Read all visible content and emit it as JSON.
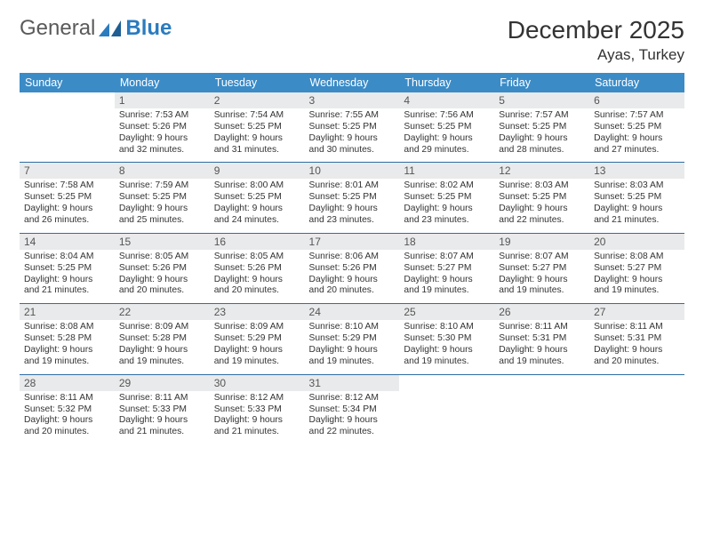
{
  "branding": {
    "word1": "General",
    "word2": "Blue",
    "logo_color": "#2b7bbf",
    "text_color": "#5a5a5a"
  },
  "title": {
    "month": "December 2025",
    "location": "Ayas, Turkey"
  },
  "colors": {
    "header_bg": "#3b8bc7",
    "header_fg": "#ffffff",
    "daynum_bg": "#e9eaeb",
    "row_border": "#2f6ea3"
  },
  "weekdays": [
    "Sunday",
    "Monday",
    "Tuesday",
    "Wednesday",
    "Thursday",
    "Friday",
    "Saturday"
  ],
  "weeks": [
    [
      {
        "n": "",
        "sr": "",
        "ss": "",
        "dl": "",
        "empty": true
      },
      {
        "n": "1",
        "sr": "Sunrise: 7:53 AM",
        "ss": "Sunset: 5:26 PM",
        "dl": "Daylight: 9 hours and 32 minutes."
      },
      {
        "n": "2",
        "sr": "Sunrise: 7:54 AM",
        "ss": "Sunset: 5:25 PM",
        "dl": "Daylight: 9 hours and 31 minutes."
      },
      {
        "n": "3",
        "sr": "Sunrise: 7:55 AM",
        "ss": "Sunset: 5:25 PM",
        "dl": "Daylight: 9 hours and 30 minutes."
      },
      {
        "n": "4",
        "sr": "Sunrise: 7:56 AM",
        "ss": "Sunset: 5:25 PM",
        "dl": "Daylight: 9 hours and 29 minutes."
      },
      {
        "n": "5",
        "sr": "Sunrise: 7:57 AM",
        "ss": "Sunset: 5:25 PM",
        "dl": "Daylight: 9 hours and 28 minutes."
      },
      {
        "n": "6",
        "sr": "Sunrise: 7:57 AM",
        "ss": "Sunset: 5:25 PM",
        "dl": "Daylight: 9 hours and 27 minutes."
      }
    ],
    [
      {
        "n": "7",
        "sr": "Sunrise: 7:58 AM",
        "ss": "Sunset: 5:25 PM",
        "dl": "Daylight: 9 hours and 26 minutes."
      },
      {
        "n": "8",
        "sr": "Sunrise: 7:59 AM",
        "ss": "Sunset: 5:25 PM",
        "dl": "Daylight: 9 hours and 25 minutes."
      },
      {
        "n": "9",
        "sr": "Sunrise: 8:00 AM",
        "ss": "Sunset: 5:25 PM",
        "dl": "Daylight: 9 hours and 24 minutes."
      },
      {
        "n": "10",
        "sr": "Sunrise: 8:01 AM",
        "ss": "Sunset: 5:25 PM",
        "dl": "Daylight: 9 hours and 23 minutes."
      },
      {
        "n": "11",
        "sr": "Sunrise: 8:02 AM",
        "ss": "Sunset: 5:25 PM",
        "dl": "Daylight: 9 hours and 23 minutes."
      },
      {
        "n": "12",
        "sr": "Sunrise: 8:03 AM",
        "ss": "Sunset: 5:25 PM",
        "dl": "Daylight: 9 hours and 22 minutes."
      },
      {
        "n": "13",
        "sr": "Sunrise: 8:03 AM",
        "ss": "Sunset: 5:25 PM",
        "dl": "Daylight: 9 hours and 21 minutes."
      }
    ],
    [
      {
        "n": "14",
        "sr": "Sunrise: 8:04 AM",
        "ss": "Sunset: 5:25 PM",
        "dl": "Daylight: 9 hours and 21 minutes."
      },
      {
        "n": "15",
        "sr": "Sunrise: 8:05 AM",
        "ss": "Sunset: 5:26 PM",
        "dl": "Daylight: 9 hours and 20 minutes."
      },
      {
        "n": "16",
        "sr": "Sunrise: 8:05 AM",
        "ss": "Sunset: 5:26 PM",
        "dl": "Daylight: 9 hours and 20 minutes."
      },
      {
        "n": "17",
        "sr": "Sunrise: 8:06 AM",
        "ss": "Sunset: 5:26 PM",
        "dl": "Daylight: 9 hours and 20 minutes."
      },
      {
        "n": "18",
        "sr": "Sunrise: 8:07 AM",
        "ss": "Sunset: 5:27 PM",
        "dl": "Daylight: 9 hours and 19 minutes."
      },
      {
        "n": "19",
        "sr": "Sunrise: 8:07 AM",
        "ss": "Sunset: 5:27 PM",
        "dl": "Daylight: 9 hours and 19 minutes."
      },
      {
        "n": "20",
        "sr": "Sunrise: 8:08 AM",
        "ss": "Sunset: 5:27 PM",
        "dl": "Daylight: 9 hours and 19 minutes."
      }
    ],
    [
      {
        "n": "21",
        "sr": "Sunrise: 8:08 AM",
        "ss": "Sunset: 5:28 PM",
        "dl": "Daylight: 9 hours and 19 minutes."
      },
      {
        "n": "22",
        "sr": "Sunrise: 8:09 AM",
        "ss": "Sunset: 5:28 PM",
        "dl": "Daylight: 9 hours and 19 minutes."
      },
      {
        "n": "23",
        "sr": "Sunrise: 8:09 AM",
        "ss": "Sunset: 5:29 PM",
        "dl": "Daylight: 9 hours and 19 minutes."
      },
      {
        "n": "24",
        "sr": "Sunrise: 8:10 AM",
        "ss": "Sunset: 5:29 PM",
        "dl": "Daylight: 9 hours and 19 minutes."
      },
      {
        "n": "25",
        "sr": "Sunrise: 8:10 AM",
        "ss": "Sunset: 5:30 PM",
        "dl": "Daylight: 9 hours and 19 minutes."
      },
      {
        "n": "26",
        "sr": "Sunrise: 8:11 AM",
        "ss": "Sunset: 5:31 PM",
        "dl": "Daylight: 9 hours and 19 minutes."
      },
      {
        "n": "27",
        "sr": "Sunrise: 8:11 AM",
        "ss": "Sunset: 5:31 PM",
        "dl": "Daylight: 9 hours and 20 minutes."
      }
    ],
    [
      {
        "n": "28",
        "sr": "Sunrise: 8:11 AM",
        "ss": "Sunset: 5:32 PM",
        "dl": "Daylight: 9 hours and 20 minutes."
      },
      {
        "n": "29",
        "sr": "Sunrise: 8:11 AM",
        "ss": "Sunset: 5:33 PM",
        "dl": "Daylight: 9 hours and 21 minutes."
      },
      {
        "n": "30",
        "sr": "Sunrise: 8:12 AM",
        "ss": "Sunset: 5:33 PM",
        "dl": "Daylight: 9 hours and 21 minutes."
      },
      {
        "n": "31",
        "sr": "Sunrise: 8:12 AM",
        "ss": "Sunset: 5:34 PM",
        "dl": "Daylight: 9 hours and 22 minutes."
      },
      {
        "n": "",
        "sr": "",
        "ss": "",
        "dl": "",
        "empty": true
      },
      {
        "n": "",
        "sr": "",
        "ss": "",
        "dl": "",
        "empty": true
      },
      {
        "n": "",
        "sr": "",
        "ss": "",
        "dl": "",
        "empty": true
      }
    ]
  ]
}
